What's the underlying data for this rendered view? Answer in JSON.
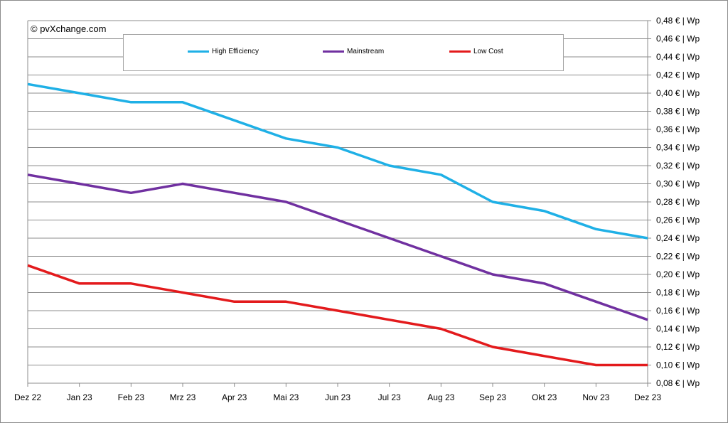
{
  "copyright": "© pvXchange.com",
  "chart_data": {
    "type": "line",
    "title": "",
    "xlabel": "",
    "ylabel": "",
    "categories": [
      "Dez 22",
      "Jan 23",
      "Feb 23",
      "Mrz 23",
      "Apr 23",
      "Mai 23",
      "Jun 23",
      "Jul 23",
      "Aug 23",
      "Sep 23",
      "Okt 23",
      "Nov 23",
      "Dez 23"
    ],
    "ylim": [
      0.08,
      0.48
    ],
    "ytick_labels": [
      "0,48 € | Wp",
      "0,46 € | Wp",
      "0,44 € | Wp",
      "0,42 € | Wp",
      "0,40 € | Wp",
      "0,38 € | Wp",
      "0,36 € | Wp",
      "0,34 € | Wp",
      "0,32 € | Wp",
      "0,30 € | Wp",
      "0,28 € | Wp",
      "0,26 € | Wp",
      "0,24 € | Wp",
      "0,22 € | Wp",
      "0,20 € | Wp",
      "0,18 € | Wp",
      "0,16 € | Wp",
      "0,14 € | Wp",
      "0,12 € | Wp",
      "0,10 € | Wp",
      "0,08 € | Wp"
    ],
    "grid": true,
    "legend_position": "top",
    "series": [
      {
        "name": "High Efficiency",
        "color": "#1fb0e6",
        "values": [
          0.41,
          0.4,
          0.39,
          0.39,
          0.37,
          0.35,
          0.34,
          0.32,
          0.31,
          0.28,
          0.27,
          0.25,
          0.24
        ]
      },
      {
        "name": "Mainstream",
        "color": "#7030a0",
        "values": [
          0.31,
          0.3,
          0.29,
          0.3,
          0.29,
          0.28,
          0.26,
          0.24,
          0.22,
          0.2,
          0.19,
          0.17,
          0.15
        ]
      },
      {
        "name": "Low Cost",
        "color": "#e31a1c",
        "values": [
          0.21,
          0.19,
          0.19,
          0.18,
          0.17,
          0.17,
          0.16,
          0.15,
          0.14,
          0.12,
          0.11,
          0.1,
          0.1
        ]
      }
    ]
  }
}
